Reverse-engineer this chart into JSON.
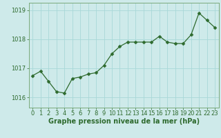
{
  "x": [
    0,
    1,
    2,
    3,
    4,
    5,
    6,
    7,
    8,
    9,
    10,
    11,
    12,
    13,
    14,
    15,
    16,
    17,
    18,
    19,
    20,
    21,
    22,
    23
  ],
  "y": [
    1016.75,
    1016.9,
    1016.55,
    1016.2,
    1016.15,
    1016.65,
    1016.7,
    1016.8,
    1016.85,
    1017.1,
    1017.5,
    1017.75,
    1017.9,
    1017.9,
    1017.9,
    1017.9,
    1018.1,
    1017.9,
    1017.85,
    1017.85,
    1018.15,
    1018.9,
    1018.65,
    1018.4
  ],
  "line_color": "#2d6a2d",
  "marker": "D",
  "markersize": 2.5,
  "linewidth": 0.9,
  "background_color": "#ceeaea",
  "grid_color": "#a8d8d8",
  "xlabel": "Graphe pression niveau de la mer (hPa)",
  "xlabel_fontsize": 7,
  "yticks": [
    1016,
    1017,
    1018,
    1019
  ],
  "xticks": [
    0,
    1,
    2,
    3,
    4,
    5,
    6,
    7,
    8,
    9,
    10,
    11,
    12,
    13,
    14,
    15,
    16,
    17,
    18,
    19,
    20,
    21,
    22,
    23
  ],
  "ylim": [
    1015.65,
    1019.25
  ],
  "xlim": [
    -0.5,
    23.5
  ],
  "tick_fontsize": 6,
  "tick_color": "#2d6a2d",
  "spine_color": "#7aaa7a"
}
